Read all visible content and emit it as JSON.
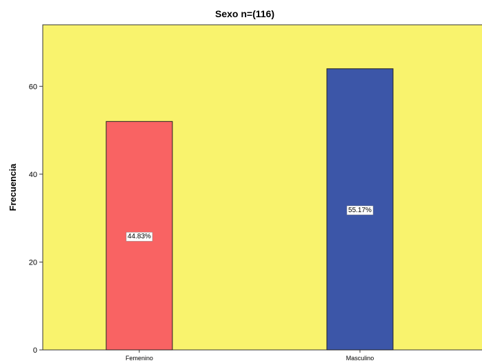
{
  "chart_data": {
    "type": "bar",
    "title": "Sexo n=(116)",
    "xlabel": "",
    "ylabel": "Frecuencia",
    "categories": [
      "Femenino",
      "Masculino"
    ],
    "values": [
      52,
      64
    ],
    "data_labels": [
      "44.83%",
      "55.17%"
    ],
    "colors": [
      "#f96363",
      "#3c56a8"
    ],
    "plot_background": "#f9f36d",
    "yticks": [
      0,
      20,
      40,
      60
    ],
    "ylim": [
      0,
      74
    ],
    "grid": false,
    "legend": "none"
  }
}
